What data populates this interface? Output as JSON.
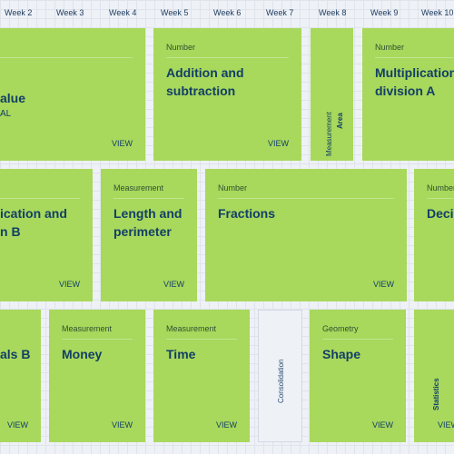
{
  "weeks": [
    "Week 2",
    "Week 3",
    "Week 4",
    "Week 5",
    "Week 6",
    "Week 7",
    "Week 8",
    "Week 9",
    "Week 10"
  ],
  "view_label": "VIEW",
  "row1": {
    "place_value": {
      "title": "alue",
      "sub": "AL"
    },
    "addition": {
      "category": "Number",
      "title_line1": "Addition and",
      "title_line2": "subtraction"
    },
    "area": {
      "category": "Measurement",
      "title": "Area"
    },
    "multiplication_a": {
      "category": "Number",
      "title_line1": "Multiplication",
      "title_line2": "division A"
    }
  },
  "row2": {
    "multiplication_b": {
      "title_line1": "ication and",
      "title_line2": "n B"
    },
    "length": {
      "category": "Measurement",
      "title_line1": "Length and",
      "title_line2": "perimeter"
    },
    "fractions": {
      "category": "Number",
      "title": "Fractions"
    },
    "decimals": {
      "category": "Number",
      "title": "Deci"
    }
  },
  "row3": {
    "decimals_b": {
      "title": "als B"
    },
    "money": {
      "category": "Measurement",
      "title": "Money"
    },
    "time": {
      "category": "Measurement",
      "title": "Time"
    },
    "consolidation": {
      "title": "Consolidation"
    },
    "shape": {
      "category": "Geometry",
      "title": "Shape"
    },
    "statistics": {
      "title": "Statistics"
    }
  }
}
